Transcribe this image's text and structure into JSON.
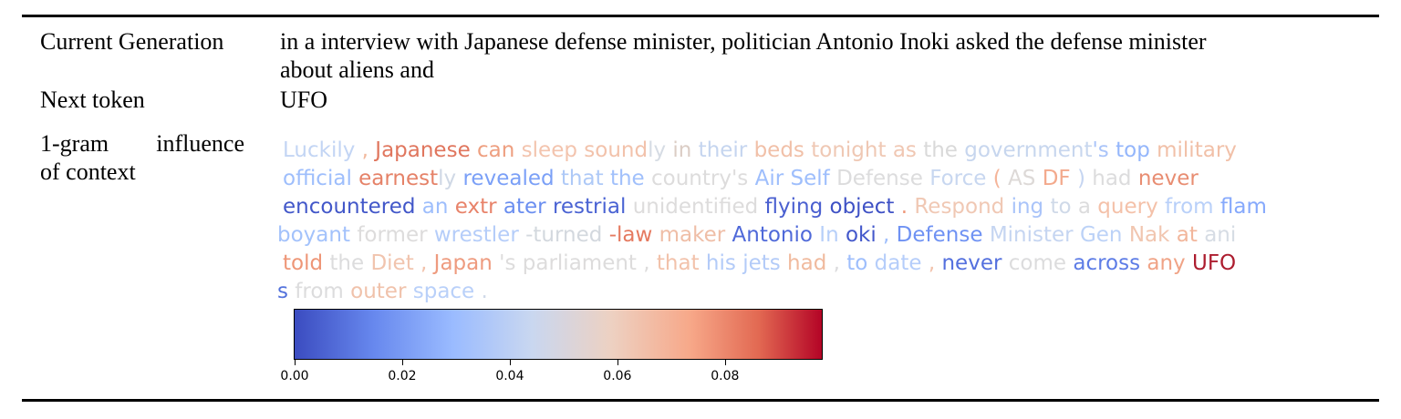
{
  "rows": {
    "current_generation": {
      "label": "Current Generation",
      "value_line1": "in a interview with Japanese defense minister, politician Antonio Inoki asked the defense minister",
      "value_line2": "about aliens and"
    },
    "next_token": {
      "label": "Next token",
      "value": "UFO"
    },
    "influence": {
      "label_line1_a": "1-gram",
      "label_line1_b": "influence",
      "label_line2": "of context"
    }
  },
  "token_lines": [
    [
      {
        "t": "Luckily",
        "c": "#c3d5f4"
      },
      {
        "t": " , ",
        "c": "#f2b99d"
      },
      {
        "t": "Japanese",
        "c": "#e0765e"
      },
      {
        "t": " can ",
        "c": "#ee9f80"
      },
      {
        "t": "sleep ",
        "c": "#f3c4ae"
      },
      {
        "t": "sound",
        "c": "#f2c2ab"
      },
      {
        "t": "ly ",
        "c": "#d6dce4"
      },
      {
        "t": "in ",
        "c": "#dbcdc5"
      },
      {
        "t": "their ",
        "c": "#c5d5ef"
      },
      {
        "t": "beds ",
        "c": "#f1c0a8"
      },
      {
        "t": "tonight ",
        "c": "#efc8b4"
      },
      {
        "t": "as ",
        "c": "#f0c7b3"
      },
      {
        "t": "the ",
        "c": "#d9d9d9"
      },
      {
        "t": "government",
        "c": "#c7d6ee"
      },
      {
        "t": "'s ",
        "c": "#aac4f9"
      },
      {
        "t": "top ",
        "c": "#94b6fb"
      },
      {
        "t": "military",
        "c": "#f1c0a8"
      }
    ],
    [
      {
        "t": "official ",
        "c": "#9ebefc"
      },
      {
        "t": "earnest",
        "c": "#e58268"
      },
      {
        "t": "ly ",
        "c": "#cfd8e5"
      },
      {
        "t": "revealed ",
        "c": "#7ba0f7"
      },
      {
        "t": "that ",
        "c": "#aec9f7"
      },
      {
        "t": "the ",
        "c": "#a1c0fb"
      },
      {
        "t": "country",
        "c": "#dddcdc"
      },
      {
        "t": "'s ",
        "c": "#dddcdc"
      },
      {
        "t": "Air ",
        "c": "#9ebefc"
      },
      {
        "t": "Self ",
        "c": "#9ebefc"
      },
      {
        "t": "Defense ",
        "c": "#dcdcdd"
      },
      {
        "t": "Force ",
        "c": "#c8d7f0"
      },
      {
        "t": "( ",
        "c": "#f5b59a"
      },
      {
        "t": "AS ",
        "c": "#ddd9d7"
      },
      {
        "t": "DF ",
        "c": "#f3aa8d"
      },
      {
        "t": ") ",
        "c": "#c5d5f1"
      },
      {
        "t": "had ",
        "c": "#dcdcdd"
      },
      {
        "t": "never",
        "c": "#e88d72"
      }
    ],
    [
      {
        "t": "encountered ",
        "c": "#4257c9"
      },
      {
        "t": "an ",
        "c": "#9ebefc"
      },
      {
        "t": "extr ",
        "c": "#e8836a"
      },
      {
        "t": "ater ",
        "c": "#6a8ef0"
      },
      {
        "t": "restrial ",
        "c": "#4a63d3"
      },
      {
        "t": "unidentified ",
        "c": "#dddcdc"
      },
      {
        "t": "flying ",
        "c": "#4a5fd0"
      },
      {
        "t": "object",
        "c": "#3e51c5"
      },
      {
        "t": " . ",
        "c": "#ee9677"
      },
      {
        "t": "Respond ",
        "c": "#f0c8b4"
      },
      {
        "t": "ing ",
        "c": "#aac4f9"
      },
      {
        "t": "to ",
        "c": "#cfd9e8"
      },
      {
        "t": "a ",
        "c": "#dcdcdd"
      },
      {
        "t": "query ",
        "c": "#f4c1a9"
      },
      {
        "t": "from ",
        "c": "#b9d0f9"
      },
      {
        "t": "flam",
        "c": "#86a9fc"
      }
    ],
    [
      {
        "t": "boy",
        "c": "#a3c2fb"
      },
      {
        "t": "ant ",
        "c": "#a3c2fb"
      },
      {
        "t": "former ",
        "c": "#dddcdc"
      },
      {
        "t": "wrestler ",
        "c": "#b5cdf9"
      },
      {
        "t": "-turned ",
        "c": "#d3d8de"
      },
      {
        "t": "-law ",
        "c": "#e57a60"
      },
      {
        "t": "maker ",
        "c": "#efbea7"
      },
      {
        "t": "Antonio ",
        "c": "#4f69d9"
      },
      {
        "t": "In ",
        "c": "#b7cff9"
      },
      {
        "t": "oki ",
        "c": "#4358cb"
      },
      {
        "t": ", ",
        "c": "#9ebefc"
      },
      {
        "t": "Defense ",
        "c": "#6f92f3"
      },
      {
        "t": "Minister ",
        "c": "#c5d5f1"
      },
      {
        "t": "Gen ",
        "c": "#bcd2f7"
      },
      {
        "t": "Nak ",
        "c": "#f1c6b0"
      },
      {
        "t": "at ",
        "c": "#f2b69b"
      },
      {
        "t": "ani",
        "c": "#d6dce4"
      }
    ],
    [
      {
        "t": "told ",
        "c": "#ee9677"
      },
      {
        "t": "the ",
        "c": "#dcdcdd"
      },
      {
        "t": "Diet ",
        "c": "#f1c4ae"
      },
      {
        "t": ", ",
        "c": "#f2c2ab"
      },
      {
        "t": "Japan ",
        "c": "#ee9b7f"
      },
      {
        "t": "'s ",
        "c": "#dddcdc"
      },
      {
        "t": "parliament ",
        "c": "#dddcdc"
      },
      {
        "t": ", ",
        "c": "#dddcdc"
      },
      {
        "t": "that ",
        "c": "#f2c2ab"
      },
      {
        "t": "his ",
        "c": "#b3cbf8"
      },
      {
        "t": "jets ",
        "c": "#b3cbf8"
      },
      {
        "t": "had ",
        "c": "#f0ba9e"
      },
      {
        "t": ", ",
        "c": "#dbdbdd"
      },
      {
        "t": "to ",
        "c": "#9ebefc"
      },
      {
        "t": "date ",
        "c": "#b5cdfa"
      },
      {
        "t": ", ",
        "c": "#f2c2ab"
      },
      {
        "t": "never ",
        "c": "#5470de"
      },
      {
        "t": "come ",
        "c": "#dcdcdd"
      },
      {
        "t": "across ",
        "c": "#5d7ce6"
      },
      {
        "t": "any ",
        "c": "#f0a386"
      },
      {
        "t": "UFO",
        "c": "#ad1d2f"
      }
    ],
    [
      {
        "t": "s ",
        "c": "#5372dc"
      },
      {
        "t": "from ",
        "c": "#dcdcdd"
      },
      {
        "t": "outer ",
        "c": "#f0c2ab"
      },
      {
        "t": "space ",
        "c": "#b9d0f9"
      },
      {
        "t": ".",
        "c": "#cfd9e8"
      }
    ]
  ],
  "colorbar": {
    "min": 0.0,
    "max": 0.098,
    "tick_values": [
      0.0,
      0.02,
      0.04,
      0.06,
      0.08
    ],
    "tick_labels": [
      "0.00",
      "0.02",
      "0.04",
      "0.06",
      "0.08"
    ],
    "colormap": "coolwarm"
  }
}
